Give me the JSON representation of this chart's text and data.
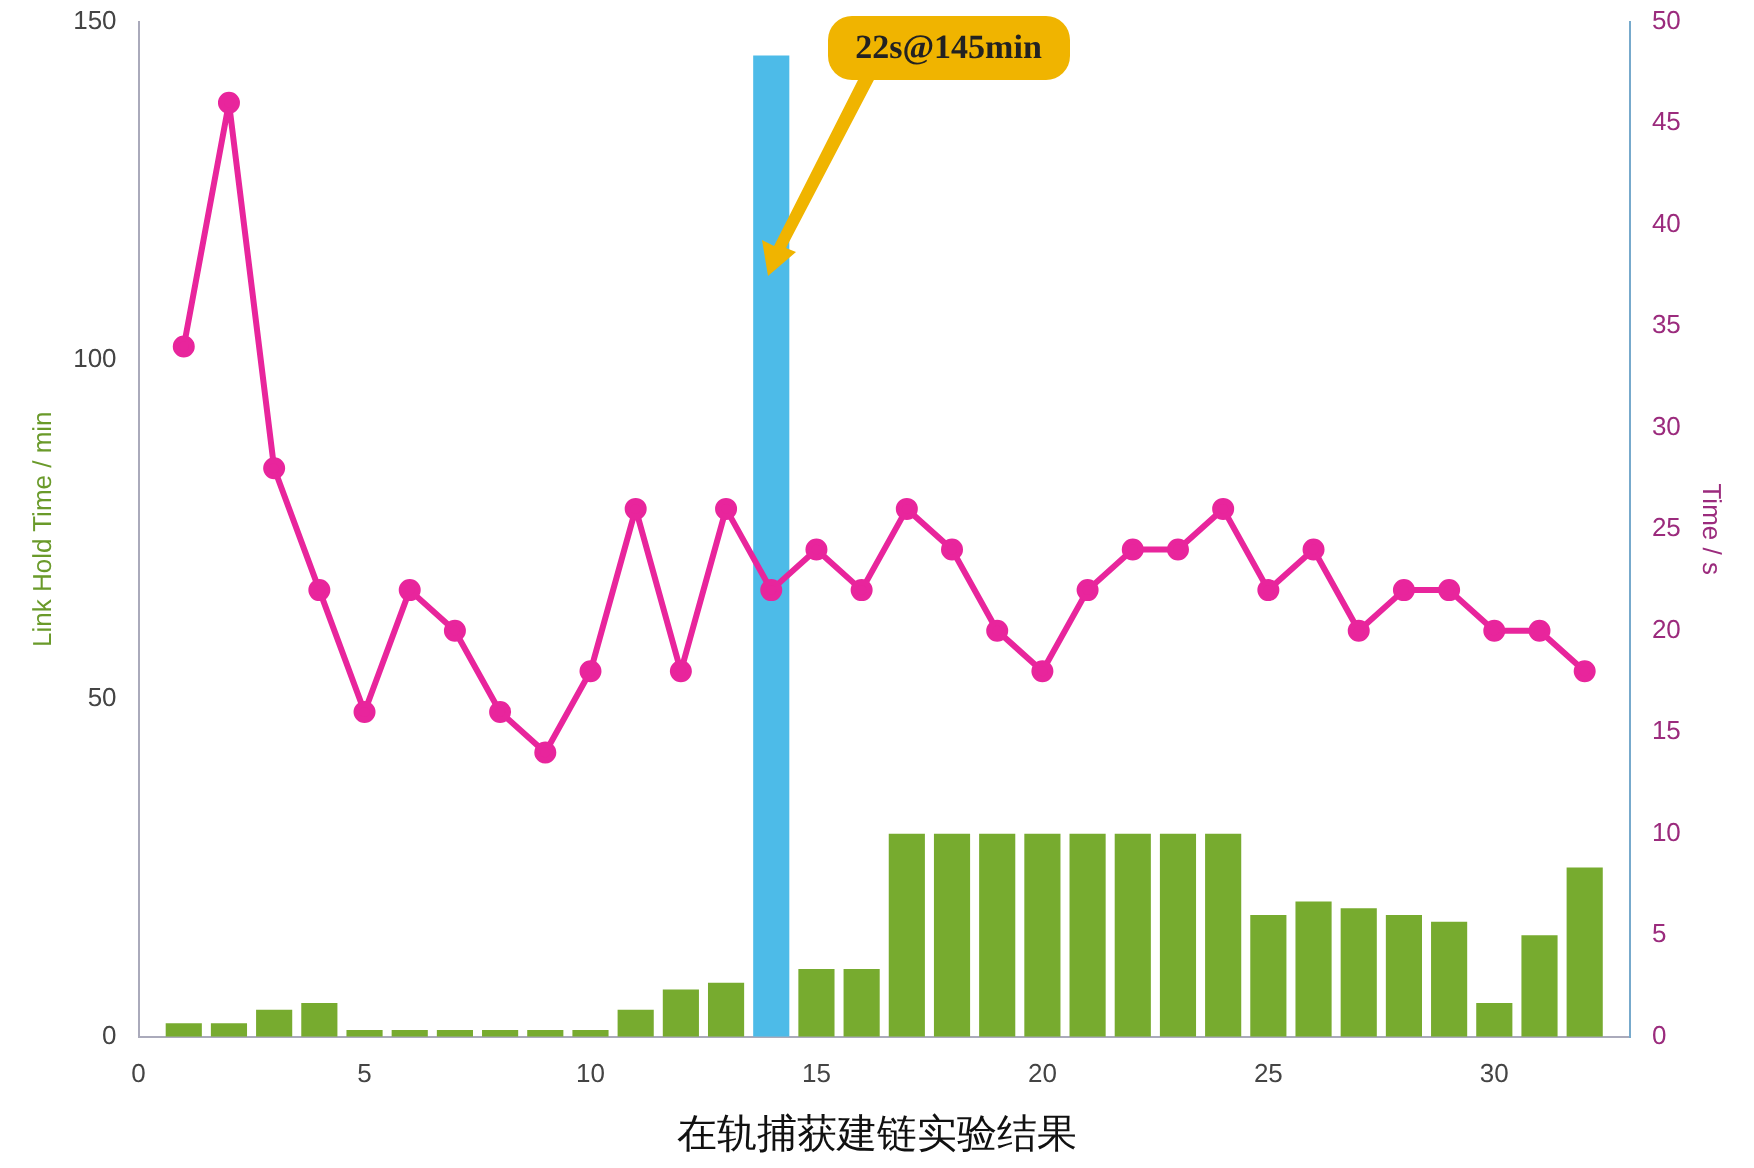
{
  "chart_data": {
    "type": "bar",
    "title": "在轨捕获建链实验结果",
    "ylabel": "Link Hold Time / min",
    "y2label": "Time / s",
    "annotations": [
      {
        "text": "22s@145min",
        "x": 14,
        "y": 145
      }
    ],
    "x": [
      1,
      2,
      3,
      4,
      5,
      6,
      7,
      8,
      9,
      10,
      11,
      12,
      13,
      14,
      15,
      16,
      17,
      18,
      19,
      20,
      21,
      22,
      23,
      24,
      25,
      26,
      27,
      28,
      29,
      30,
      31,
      32
    ],
    "series": [
      {
        "colors": [
          "#77ab2f",
          "#77ab2f",
          "#77ab2f",
          "#77ab2f",
          "#77ab2f",
          "#77ab2f",
          "#77ab2f",
          "#77ab2f",
          "#77ab2f",
          "#77ab2f",
          "#77ab2f",
          "#77ab2f",
          "#77ab2f",
          "#4dbbe8",
          "#77ab2f",
          "#77ab2f",
          "#77ab2f",
          "#77ab2f",
          "#77ab2f",
          "#77ab2f",
          "#77ab2f",
          "#77ab2f",
          "#77ab2f",
          "#77ab2f",
          "#77ab2f",
          "#77ab2f",
          "#77ab2f",
          "#77ab2f",
          "#77ab2f",
          "#77ab2f",
          "#77ab2f",
          "#77ab2f"
        ],
        "values": [
          2,
          2,
          4,
          5,
          1,
          1,
          1,
          1,
          1,
          1,
          4,
          7,
          8,
          145,
          10,
          10,
          30,
          30,
          30,
          30,
          30,
          30,
          30,
          30,
          18,
          20,
          19,
          18,
          17,
          5,
          15,
          25
        ]
      },
      {
        "type": "line",
        "axis": "y2",
        "color": "#e8259c",
        "marker": "circle",
        "values": [
          34,
          46,
          28,
          22,
          16,
          22,
          20,
          16,
          14,
          18,
          26,
          18,
          26,
          22,
          24,
          22,
          26,
          24,
          20,
          18,
          22,
          24,
          24,
          26,
          22,
          24,
          20,
          22,
          22,
          20,
          20,
          18
        ]
      }
    ],
    "xlim": [
      0,
      33
    ],
    "xticks": [
      0,
      5,
      10,
      15,
      20,
      25,
      30
    ],
    "ylim": [
      0,
      150
    ],
    "yticks": [
      0,
      50,
      100,
      150
    ],
    "y2lim": [
      0,
      50
    ],
    "y2ticks": [
      0,
      5,
      10,
      15,
      20,
      25,
      30,
      35,
      40,
      45,
      50
    ],
    "grid": false,
    "legend": false
  }
}
